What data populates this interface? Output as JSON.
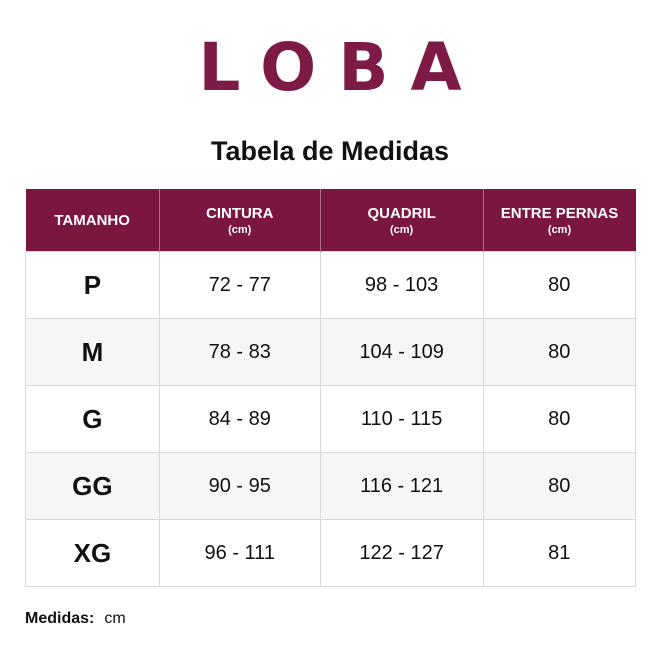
{
  "brand": "LOBA",
  "title": "Tabela de Medidas",
  "table": {
    "header": [
      {
        "label": "TAMANHO"
      },
      {
        "label": "CINTURA",
        "unit": "(cm)"
      },
      {
        "label": "QUADRIL",
        "unit": "(cm)"
      },
      {
        "label": "ENTRE PERNAS",
        "unit": "(cm)"
      }
    ],
    "rows": [
      [
        "P",
        "72 - 77",
        "98 - 103",
        "80"
      ],
      [
        "M",
        "78 - 83",
        "104 - 109",
        "80"
      ],
      [
        "G",
        "84 - 89",
        "110 - 115",
        "80"
      ],
      [
        "GG",
        "90 - 95",
        "116 - 121",
        "80"
      ],
      [
        "XG",
        "96 - 111",
        "122 - 127",
        "81"
      ]
    ]
  },
  "footer": {
    "label": "Medidas:",
    "value": "cm"
  }
}
